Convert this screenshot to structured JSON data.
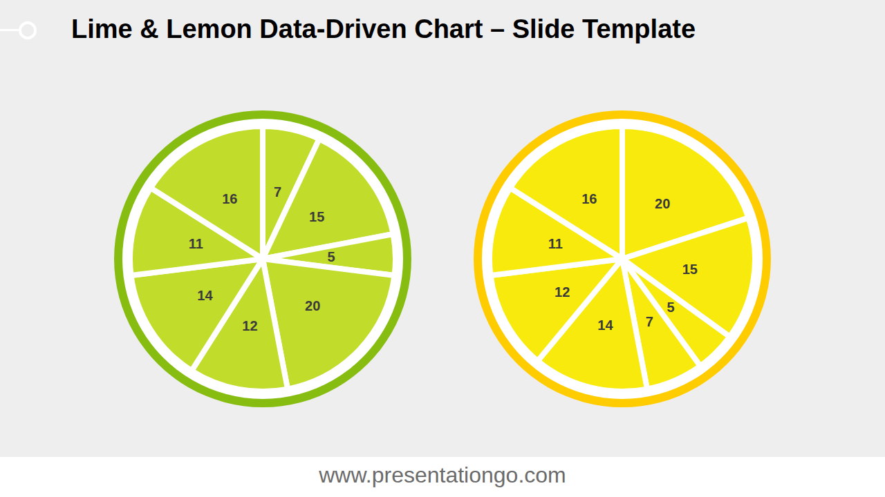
{
  "title": "Lime & Lemon Data-Driven Chart – Slide Template",
  "footer": "www.presentationgo.com",
  "chart_data": [
    {
      "type": "pie",
      "values": [
        7,
        15,
        5,
        20,
        12,
        14,
        11,
        16
      ],
      "color": "#c2dc2c",
      "data_labels": true
    },
    {
      "type": "pie",
      "values": [
        20,
        15,
        5,
        7,
        14,
        12,
        11,
        16
      ],
      "color": "#f7ea0c",
      "data_labels": true
    }
  ]
}
